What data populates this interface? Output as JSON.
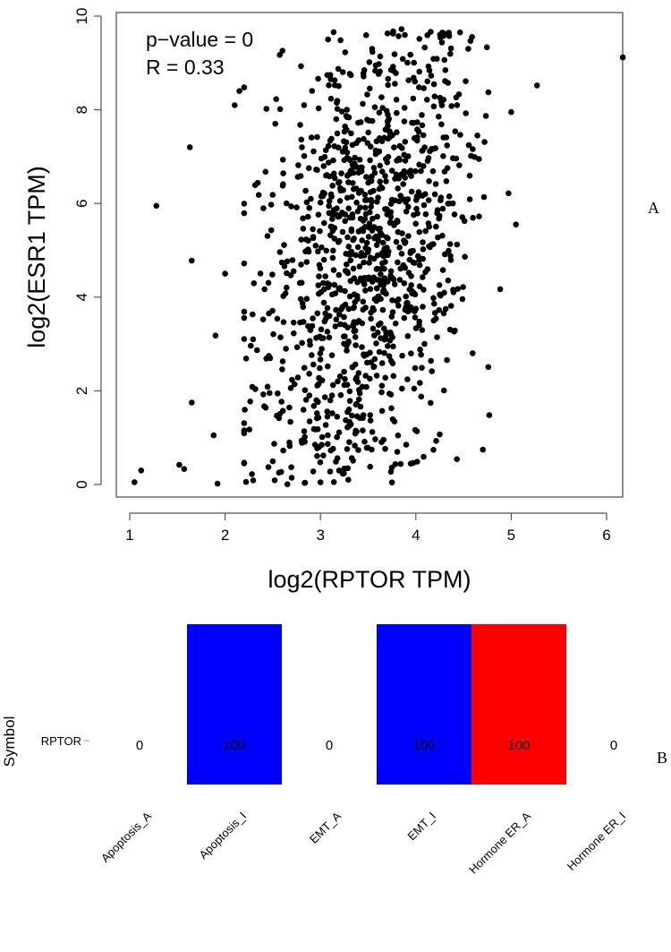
{
  "panel_labels": [
    "A",
    "B"
  ],
  "chart_data": [
    {
      "type": "scatter",
      "title": "",
      "xlabel": "log2(RPTOR TPM)",
      "ylabel": "log2(ESR1 TPM)",
      "xlim": [
        1,
        6.3
      ],
      "ylim": [
        0,
        10
      ],
      "xticks": [
        "1",
        "2",
        "3",
        "4",
        "5",
        "6"
      ],
      "yticks": [
        "0",
        "2",
        "4",
        "6",
        "8",
        "10"
      ],
      "annotations": [
        "p−value = 0",
        "R = 0.33"
      ],
      "n_points": 1100,
      "x_distribution": {
        "mean": 3.45,
        "sd": 0.55
      },
      "y_distribution": {
        "intercept": 0.2,
        "slope": 1.35,
        "noise_sd": 2.45
      },
      "outliers": [
        {
          "x": 1.05,
          "y": 0.05
        },
        {
          "x": 1.12,
          "y": 0.3
        },
        {
          "x": 1.28,
          "y": 5.95
        },
        {
          "x": 1.52,
          "y": 0.42
        },
        {
          "x": 1.57,
          "y": 0.33
        },
        {
          "x": 1.63,
          "y": 7.2
        },
        {
          "x": 1.65,
          "y": 1.75
        },
        {
          "x": 1.65,
          "y": 4.78
        },
        {
          "x": 1.9,
          "y": 3.18
        },
        {
          "x": 1.92,
          "y": 0.02
        },
        {
          "x": 2.1,
          "y": 8.1
        },
        {
          "x": 2.15,
          "y": 8.4
        },
        {
          "x": 2.0,
          "y": 4.5
        },
        {
          "x": 1.88,
          "y": 1.05
        },
        {
          "x": 6.17,
          "y": 9.12
        },
        {
          "x": 5.27,
          "y": 8.52
        },
        {
          "x": 5.05,
          "y": 5.55
        },
        {
          "x": 4.77,
          "y": 1.48
        },
        {
          "x": 3.08,
          "y": 9.5
        },
        {
          "x": 3.85,
          "y": 9.72
        },
        {
          "x": 4.55,
          "y": 9.3
        },
        {
          "x": 5.0,
          "y": 7.95
        }
      ]
    },
    {
      "type": "heatmap",
      "ylabel": "Symbol",
      "rows": [
        "RPTOR"
      ],
      "columns": [
        "Apoptosis_A",
        "Apoptosis_I",
        "EMT_A",
        "EMT_I",
        "Hormone ER_A",
        "Hormone ER_I"
      ],
      "values": [
        [
          0,
          100,
          0,
          100,
          100,
          0
        ]
      ],
      "cell_labels": [
        [
          "0",
          "100",
          "0",
          "100",
          "100",
          "0"
        ]
      ],
      "cell_colors": [
        [
          "#ffffff",
          "#0000ff",
          "#ffffff",
          "#0000ff",
          "#ff0000",
          "#ffffff"
        ]
      ]
    }
  ]
}
